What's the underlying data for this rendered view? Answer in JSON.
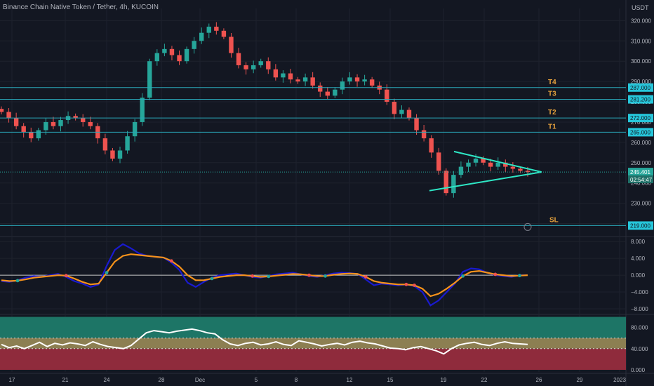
{
  "header": {
    "title": "Binance Chain Native Token / Tether, 4h, KUCOIN",
    "currency": "USDT"
  },
  "chart_data": [
    {
      "type": "candlestick",
      "title": "Binance Chain Native Token / Tether, 4h, KUCOIN",
      "y_ticks": [
        "320.000",
        "310.000",
        "300.000",
        "290.000",
        "280.000",
        "270.000",
        "260.000",
        "250.000",
        "240.000",
        "230.000",
        "220.000"
      ],
      "ylim": [
        215,
        326
      ],
      "x_ticks": [
        "17",
        "21",
        "24",
        "28",
        "Dec",
        "5",
        "8",
        "12",
        "15",
        "19",
        "22",
        "26",
        "29",
        "2023"
      ],
      "last_price": "245.401",
      "countdown": "02:54:47",
      "levels": [
        {
          "label": "T4",
          "value": "287.000"
        },
        {
          "label": "T3",
          "value": "281.200"
        },
        {
          "label": "T2",
          "value": "272.000"
        },
        {
          "label": "T1",
          "value": "265.000"
        },
        {
          "label": "SL",
          "value": "219.000"
        }
      ],
      "colors": {
        "up": "#26a69a",
        "down": "#ef5350",
        "levels": "#2aa7b8",
        "label_bg": "#26c6da",
        "triangle": "#2ee8c6"
      },
      "close_series": [
        275,
        272,
        268,
        265,
        262,
        266,
        270,
        268,
        271,
        273,
        272,
        270,
        268,
        262,
        256,
        252,
        256,
        263,
        270,
        282,
        300,
        304,
        306,
        303,
        300,
        306,
        310,
        314,
        317,
        315,
        312,
        304,
        298,
        296,
        298,
        300,
        296,
        292,
        294,
        291,
        290,
        292,
        288,
        285,
        283,
        286,
        290,
        292,
        290,
        291,
        288,
        286,
        280,
        274,
        276,
        272,
        266,
        262,
        255,
        246,
        235,
        244,
        248,
        250,
        252,
        250,
        248,
        250,
        248,
        247,
        246,
        245.4
      ]
    },
    {
      "type": "line",
      "y_ticks": [
        "8.000",
        "4.000",
        "0.000",
        "−4.000",
        "−8.000"
      ],
      "ylim": [
        -9,
        8.7
      ],
      "series": [
        {
          "color": "#1a1acf",
          "values": [
            -1.4,
            -1.6,
            -1.2,
            -0.6,
            -0.2,
            -0.4,
            0.0,
            0.3,
            -0.4,
            -1.4,
            -2.0,
            -2.8,
            -2.2,
            2.2,
            6.0,
            7.4,
            6.4,
            5.2,
            4.6,
            4.4,
            4.2,
            3.0,
            1.2,
            -1.8,
            -2.8,
            -1.6,
            -0.6,
            0.0,
            0.2,
            0.4,
            0.0,
            -0.4,
            -0.6,
            -0.2,
            0.2,
            0.4,
            0.6,
            0.2,
            -0.2,
            -0.4,
            0.0,
            0.4,
            0.6,
            0.5,
            0.3,
            -1.0,
            -2.4,
            -2.0,
            -2.2,
            -2.4,
            -2.2,
            -2.6,
            -4.0,
            -7.2,
            -6.0,
            -4.0,
            -2.0,
            0.8,
            1.6,
            1.4,
            0.6,
            0.0,
            -0.2,
            -0.4,
            0.0,
            0.0
          ]
        },
        {
          "color": "#f7931a",
          "values": [
            -1.2,
            -1.4,
            -1.3,
            -1.0,
            -0.6,
            -0.4,
            -0.2,
            0.0,
            -0.1,
            -0.8,
            -1.6,
            -2.2,
            -2.0,
            0.6,
            3.2,
            4.6,
            5.0,
            4.8,
            4.6,
            4.4,
            4.2,
            3.4,
            2.0,
            0.0,
            -1.2,
            -1.2,
            -0.8,
            -0.4,
            -0.2,
            0.0,
            0.0,
            -0.2,
            -0.4,
            -0.3,
            -0.1,
            0.1,
            0.3,
            0.2,
            0.0,
            -0.2,
            -0.2,
            0.1,
            0.3,
            0.4,
            0.3,
            -0.4,
            -1.4,
            -1.8,
            -2.0,
            -2.2,
            -2.2,
            -2.4,
            -3.2,
            -5.0,
            -4.4,
            -3.2,
            -1.8,
            -0.2,
            0.8,
            1.0,
            0.6,
            0.2,
            0.0,
            -0.2,
            -0.1,
            0.0
          ]
        }
      ]
    },
    {
      "type": "line",
      "y_ticks": [
        "80.000",
        "40.000",
        "0.000"
      ],
      "ylim": [
        -4,
        102
      ],
      "bands": [
        {
          "from": 60,
          "to": 100,
          "color": "#1d7566"
        },
        {
          "from": 40,
          "to": 60,
          "color": "#8c7f52"
        },
        {
          "from": 0,
          "to": 40,
          "color": "#8f2b3c"
        }
      ],
      "series": [
        {
          "color": "#ffffff",
          "values": [
            48,
            42,
            45,
            40,
            46,
            52,
            44,
            50,
            47,
            51,
            49,
            46,
            53,
            48,
            44,
            42,
            40,
            46,
            58,
            70,
            74,
            72,
            70,
            73,
            75,
            77,
            74,
            70,
            68,
            57,
            49,
            46,
            50,
            52,
            47,
            49,
            53,
            48,
            46,
            55,
            52,
            49,
            45,
            48,
            50,
            47,
            52,
            54,
            51,
            49,
            45,
            41,
            40,
            38,
            42,
            44,
            40,
            36,
            30,
            40,
            47,
            50,
            52,
            48,
            46,
            50,
            53,
            50,
            49,
            48
          ]
        }
      ]
    }
  ]
}
